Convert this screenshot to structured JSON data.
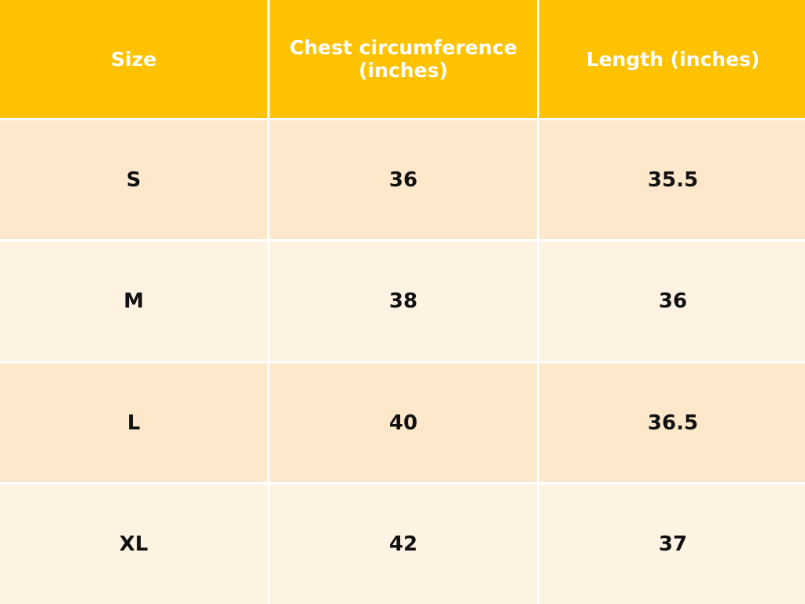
{
  "table": {
    "headers": [
      "Size",
      "Chest circumference (inches)",
      "Length (inches)"
    ],
    "rows": [
      [
        "S",
        "36",
        "35.5"
      ],
      [
        "M",
        "38",
        "36"
      ],
      [
        "L",
        "40",
        "36.5"
      ],
      [
        "XL",
        "42",
        "37"
      ]
    ]
  },
  "colors": {
    "header": "#FFC200",
    "row_odd": "#FDE8CB",
    "row_even": "#FEF3E2"
  }
}
